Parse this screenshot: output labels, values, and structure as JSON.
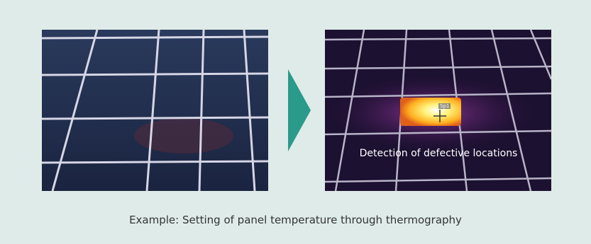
{
  "thermal_image": {
    "spot_label": "Sp1",
    "annotation": "Detection of defective locations"
  },
  "caption": "Example: Setting of panel temperature through thermography"
}
